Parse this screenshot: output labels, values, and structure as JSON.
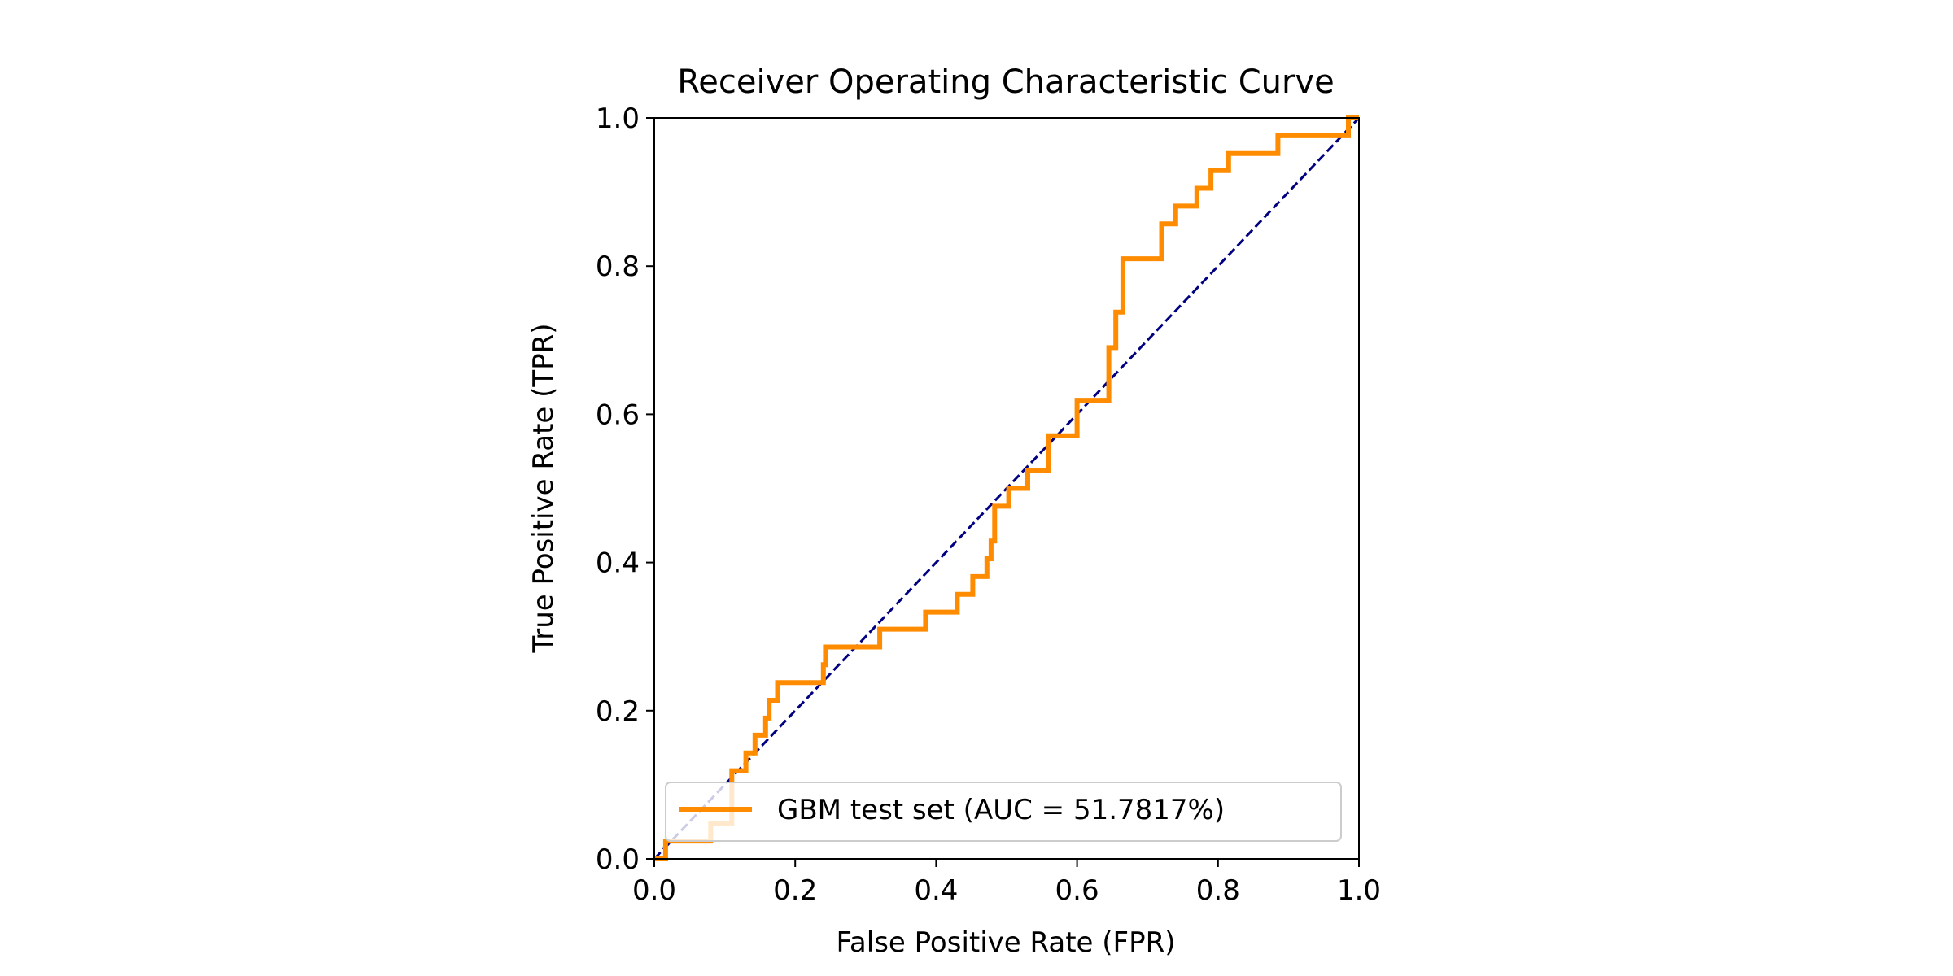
{
  "chart_data": {
    "type": "line",
    "title": "Receiver Operating Characteristic Curve",
    "xlabel": "False Positive Rate (FPR)",
    "ylabel": "True Positive Rate (TPR)",
    "xlim": [
      0.0,
      1.0
    ],
    "ylim": [
      0.0,
      1.0
    ],
    "xticks": [
      "0.0",
      "0.2",
      "0.4",
      "0.6",
      "0.8",
      "1.0"
    ],
    "yticks": [
      "0.0",
      "0.2",
      "0.4",
      "0.6",
      "0.8",
      "1.0"
    ],
    "grid": false,
    "legend_position": "lower-right",
    "series": [
      {
        "name": "GBM test set (AUC = 51.7817%)",
        "color": "#ff8c00",
        "style": "solid",
        "x": [
          0.0,
          0.016,
          0.016,
          0.08,
          0.08,
          0.11,
          0.11,
          0.13,
          0.13,
          0.143,
          0.143,
          0.158,
          0.158,
          0.163,
          0.163,
          0.175,
          0.175,
          0.24,
          0.24,
          0.243,
          0.243,
          0.32,
          0.32,
          0.385,
          0.385,
          0.43,
          0.43,
          0.452,
          0.452,
          0.472,
          0.472,
          0.478,
          0.478,
          0.483,
          0.483,
          0.503,
          0.503,
          0.53,
          0.53,
          0.56,
          0.56,
          0.6,
          0.6,
          0.645,
          0.645,
          0.655,
          0.655,
          0.665,
          0.665,
          0.72,
          0.72,
          0.74,
          0.74,
          0.77,
          0.77,
          0.79,
          0.79,
          0.815,
          0.815,
          0.885,
          0.885,
          0.985,
          0.985,
          1.0
        ],
        "y": [
          0.0,
          0.0,
          0.024,
          0.024,
          0.048,
          0.048,
          0.119,
          0.119,
          0.143,
          0.143,
          0.167,
          0.167,
          0.19,
          0.19,
          0.214,
          0.214,
          0.238,
          0.238,
          0.262,
          0.262,
          0.286,
          0.286,
          0.31,
          0.31,
          0.333,
          0.333,
          0.357,
          0.357,
          0.381,
          0.381,
          0.405,
          0.405,
          0.429,
          0.429,
          0.476,
          0.476,
          0.5,
          0.5,
          0.524,
          0.524,
          0.571,
          0.571,
          0.619,
          0.619,
          0.69,
          0.69,
          0.738,
          0.738,
          0.81,
          0.81,
          0.857,
          0.857,
          0.881,
          0.881,
          0.905,
          0.905,
          0.929,
          0.929,
          0.952,
          0.952,
          0.976,
          0.976,
          1.0,
          1.0
        ]
      },
      {
        "name": "",
        "color": "#000080",
        "style": "dashed",
        "x": [
          0.0,
          1.0
        ],
        "y": [
          0.0,
          1.0
        ]
      }
    ]
  }
}
